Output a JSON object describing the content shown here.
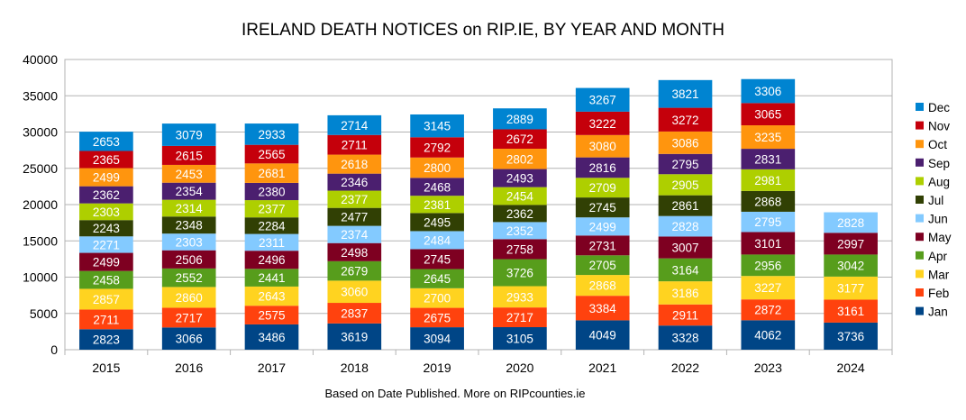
{
  "chart_data": {
    "type": "bar",
    "stacked": true,
    "title": "IRELAND DEATH NOTICES on RIP.IE, BY YEAR AND MONTH",
    "caption": "Based on Date Published. More on RIPcounties.ie",
    "xlabel": "",
    "ylabel": "",
    "ylim": [
      0,
      40000
    ],
    "yticks": [
      0,
      5000,
      10000,
      15000,
      20000,
      25000,
      30000,
      35000,
      40000
    ],
    "grid": true,
    "legend_position": "right",
    "categories": [
      "2015",
      "2016",
      "2017",
      "2018",
      "2019",
      "2020",
      "2021",
      "2022",
      "2023",
      "2024"
    ],
    "series": [
      {
        "name": "Jan",
        "color": "#004586",
        "values": [
          2823,
          3066,
          3486,
          3619,
          3094,
          3105,
          4049,
          3328,
          4062,
          3736
        ]
      },
      {
        "name": "Feb",
        "color": "#ff420e",
        "values": [
          2711,
          2717,
          2575,
          2837,
          2675,
          2717,
          3384,
          2911,
          2872,
          3161
        ]
      },
      {
        "name": "Mar",
        "color": "#ffd320",
        "values": [
          2857,
          2860,
          2643,
          3060,
          2700,
          2933,
          2868,
          3186,
          3227,
          3177
        ]
      },
      {
        "name": "Apr",
        "color": "#579d1c",
        "values": [
          2458,
          2552,
          2441,
          2679,
          2645,
          3726,
          2705,
          3164,
          2956,
          3042
        ]
      },
      {
        "name": "May",
        "color": "#7e0021",
        "values": [
          2499,
          2506,
          2496,
          2498,
          2745,
          2758,
          2731,
          3007,
          3101,
          2997
        ]
      },
      {
        "name": "Jun",
        "color": "#83caff",
        "values": [
          2271,
          2303,
          2311,
          2374,
          2484,
          2352,
          2499,
          2828,
          2795,
          2828
        ]
      },
      {
        "name": "Jul",
        "color": "#314004",
        "values": [
          2243,
          2348,
          2284,
          2477,
          2495,
          2362,
          2745,
          2861,
          2868,
          null
        ]
      },
      {
        "name": "Aug",
        "color": "#aecf00",
        "values": [
          2303,
          2314,
          2377,
          2377,
          2381,
          2454,
          2709,
          2905,
          2981,
          null
        ]
      },
      {
        "name": "Sep",
        "color": "#4b1f6f",
        "values": [
          2362,
          2354,
          2380,
          2346,
          2468,
          2493,
          2816,
          2795,
          2831,
          null
        ]
      },
      {
        "name": "Oct",
        "color": "#ff950e",
        "values": [
          2499,
          2453,
          2681,
          2618,
          2800,
          2802,
          3080,
          3086,
          3235,
          null
        ]
      },
      {
        "name": "Nov",
        "color": "#c5000b",
        "values": [
          2365,
          2615,
          2565,
          2711,
          2792,
          2672,
          3222,
          3272,
          3065,
          null
        ]
      },
      {
        "name": "Dec",
        "color": "#0084d1",
        "values": [
          2653,
          3079,
          2933,
          2714,
          3145,
          2889,
          3267,
          3821,
          3306,
          null
        ]
      }
    ]
  }
}
